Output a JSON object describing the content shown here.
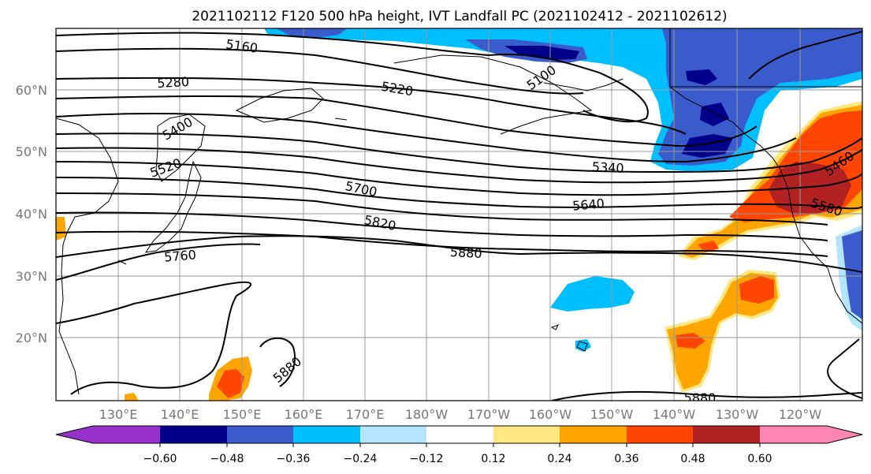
{
  "title": "2021102112 F120 500 hPa height, IVT Landfall PC (2021102412 - 2021102612)",
  "lat_labels": [
    "60°N",
    "50°N",
    "40°N",
    "30°N",
    "20°N"
  ],
  "lon_labels": [
    "130°E",
    "140°E",
    "150°E",
    "160°E",
    "170°E",
    "180°W",
    "170°W",
    "160°W",
    "150°W",
    "140°W",
    "130°W",
    "120°W"
  ],
  "contour_labels": [
    "5160",
    "5280",
    "5220",
    "5100",
    "5400",
    "5520",
    "5340",
    "5700",
    "5640",
    "5460",
    "5580",
    "5820",
    "5880",
    "5760",
    "5880",
    "5880"
  ],
  "colorbar": {
    "ticks": [
      "−0.60",
      "−0.48",
      "−0.36",
      "−0.24",
      "−0.12",
      "0.12",
      "0.24",
      "0.36",
      "0.48",
      "0.60"
    ],
    "colors": [
      "#9932cc",
      "#00008b",
      "#3a5bcc",
      "#00bfff",
      "#b3e5ff",
      "#ffffff",
      "#ffe882",
      "#ffa500",
      "#ff4500",
      "#b22222",
      "#ff85b3"
    ]
  },
  "colors": {
    "neg_strong": "#3a5bcc",
    "neg_darkest": "#00008b",
    "neg_mid": "#00bfff",
    "neg_light": "#b3e5ff",
    "pos_light": "#ffe882",
    "pos_mid": "#ffa500",
    "pos_strong": "#ff4500",
    "pos_darkest": "#b22222"
  }
}
